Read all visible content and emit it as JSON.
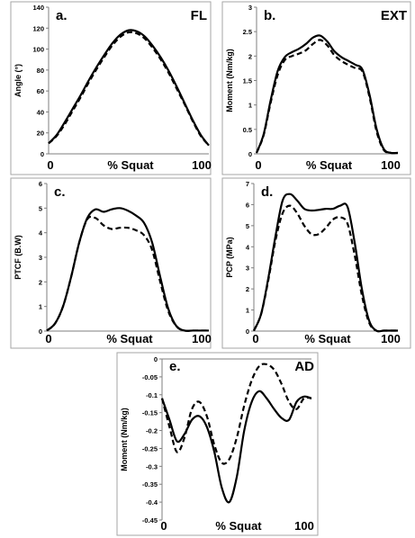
{
  "chart_data": [
    {
      "type": "line",
      "panel_label": "a.",
      "corner_label": "FL",
      "xlabel": "% Squat",
      "ylabel": "Angle (°)",
      "x_ticks": [
        "0",
        "100"
      ],
      "ylim": [
        0,
        140
      ],
      "y_ticks": [
        0,
        20,
        40,
        60,
        80,
        100,
        120,
        140
      ],
      "y_tick_labels": [
        "0",
        "20",
        "40",
        "60",
        "80",
        "100",
        "120",
        "140"
      ],
      "x": [
        0,
        5,
        10,
        15,
        20,
        25,
        30,
        35,
        40,
        45,
        50,
        55,
        60,
        65,
        70,
        75,
        80,
        85,
        90,
        95,
        100
      ],
      "series": [
        {
          "style": "solid",
          "values": [
            10,
            18,
            30,
            43,
            56,
            70,
            83,
            95,
            106,
            114,
            118,
            117,
            112,
            103,
            92,
            79,
            64,
            48,
            32,
            18,
            8
          ]
        },
        {
          "style": "dashed",
          "values": [
            10,
            17,
            28,
            41,
            54,
            68,
            81,
            93,
            104,
            112,
            116,
            115,
            110,
            101,
            90,
            77,
            62,
            47,
            31,
            17,
            8
          ]
        }
      ]
    },
    {
      "type": "line",
      "panel_label": "b.",
      "corner_label": "EXT",
      "xlabel": "% Squat",
      "ylabel": "Moment (Nm/kg)",
      "x_ticks": [
        "0",
        "100"
      ],
      "ylim": [
        0,
        3
      ],
      "y_ticks": [
        0,
        0.5,
        1,
        1.5,
        2,
        2.5,
        3
      ],
      "y_tick_labels": [
        "0",
        "0.5",
        "1",
        "1.5",
        "2",
        "2.5",
        "3"
      ],
      "x": [
        0,
        5,
        10,
        15,
        20,
        25,
        30,
        35,
        40,
        45,
        50,
        55,
        60,
        65,
        70,
        75,
        80,
        85,
        90,
        95,
        100
      ],
      "series": [
        {
          "style": "solid",
          "values": [
            0.02,
            0.4,
            1.1,
            1.7,
            1.98,
            2.08,
            2.15,
            2.25,
            2.38,
            2.42,
            2.3,
            2.1,
            1.98,
            1.9,
            1.82,
            1.72,
            1.2,
            0.5,
            0.1,
            0.02,
            0.02
          ]
        },
        {
          "style": "dashed",
          "values": [
            0.02,
            0.38,
            1.05,
            1.62,
            1.92,
            2.0,
            2.05,
            2.12,
            2.25,
            2.33,
            2.22,
            2.02,
            1.9,
            1.82,
            1.75,
            1.68,
            1.15,
            0.45,
            0.08,
            0.02,
            0.02
          ]
        }
      ]
    },
    {
      "type": "line",
      "panel_label": "c.",
      "corner_label": "",
      "xlabel": "% Squat",
      "ylabel": "PTCF (B.W)",
      "x_ticks": [
        "0",
        "100"
      ],
      "ylim": [
        0,
        6
      ],
      "y_ticks": [
        0,
        1,
        2,
        3,
        4,
        5,
        6
      ],
      "y_tick_labels": [
        "0",
        "1",
        "2",
        "3",
        "4",
        "5",
        "6"
      ],
      "x": [
        0,
        5,
        10,
        15,
        20,
        25,
        30,
        35,
        40,
        45,
        50,
        55,
        60,
        65,
        70,
        75,
        80,
        85,
        90,
        95,
        100
      ],
      "series": [
        {
          "style": "solid",
          "values": [
            0.02,
            0.3,
            1.0,
            2.2,
            3.6,
            4.6,
            4.95,
            4.85,
            4.95,
            5.0,
            4.9,
            4.7,
            4.4,
            3.6,
            2.2,
            0.9,
            0.2,
            0.02,
            0.02,
            0.02,
            0.02
          ]
        },
        {
          "style": "dashed",
          "values": [
            0.02,
            0.3,
            1.0,
            2.2,
            3.6,
            4.55,
            4.6,
            4.3,
            4.15,
            4.2,
            4.2,
            4.1,
            3.9,
            3.3,
            2.0,
            0.8,
            0.2,
            0.02,
            0.02,
            0.02,
            0.02
          ]
        }
      ]
    },
    {
      "type": "line",
      "panel_label": "d.",
      "corner_label": "",
      "xlabel": "% Squat",
      "ylabel": "PCP (MPa)",
      "x_ticks": [
        "0",
        "100"
      ],
      "ylim": [
        0,
        7
      ],
      "y_ticks": [
        0,
        1,
        2,
        3,
        4,
        5,
        6,
        7
      ],
      "y_tick_labels": [
        "0",
        "1",
        "2",
        "3",
        "4",
        "5",
        "6",
        "7"
      ],
      "x": [
        0,
        5,
        10,
        15,
        20,
        25,
        30,
        35,
        40,
        45,
        50,
        55,
        60,
        65,
        70,
        75,
        80,
        85,
        90,
        95,
        100
      ],
      "series": [
        {
          "style": "solid",
          "values": [
            0.02,
            0.8,
            2.5,
            4.5,
            6.2,
            6.5,
            6.2,
            5.8,
            5.72,
            5.75,
            5.8,
            5.8,
            5.95,
            5.9,
            4.2,
            2.0,
            0.5,
            0.02,
            0.02,
            0.02,
            0.02
          ]
        },
        {
          "style": "dashed",
          "values": [
            0.02,
            0.8,
            2.4,
            4.3,
            5.6,
            5.95,
            5.6,
            5.0,
            4.6,
            4.6,
            4.9,
            5.3,
            5.4,
            5.1,
            3.6,
            1.7,
            0.4,
            0.02,
            0.02,
            0.02,
            0.02
          ]
        }
      ]
    },
    {
      "type": "line",
      "panel_label": "e.",
      "corner_label": "AD",
      "xlabel": "% Squat",
      "ylabel": "Moment (Nm/kg)",
      "x_ticks": [
        "0",
        "100"
      ],
      "ylim": [
        -0.45,
        0
      ],
      "y_ticks": [
        -0.45,
        -0.4,
        -0.35,
        -0.3,
        -0.25,
        -0.2,
        -0.15,
        -0.1,
        -0.05,
        0
      ],
      "y_tick_labels": [
        "-0.45",
        "-0.4",
        "-0.35",
        "-0.3",
        "-0.25",
        "-0.2",
        "-0.15",
        "-0.1",
        "-0.05",
        "0"
      ],
      "x": [
        0,
        5,
        10,
        15,
        20,
        25,
        30,
        35,
        40,
        45,
        50,
        55,
        60,
        65,
        70,
        75,
        80,
        85,
        90,
        95,
        100
      ],
      "series": [
        {
          "style": "solid",
          "values": [
            -0.11,
            -0.17,
            -0.23,
            -0.21,
            -0.17,
            -0.16,
            -0.19,
            -0.26,
            -0.36,
            -0.4,
            -0.33,
            -0.2,
            -0.12,
            -0.09,
            -0.11,
            -0.14,
            -0.165,
            -0.17,
            -0.12,
            -0.105,
            -0.11
          ]
        },
        {
          "style": "dashed",
          "values": [
            -0.11,
            -0.19,
            -0.26,
            -0.22,
            -0.14,
            -0.12,
            -0.16,
            -0.24,
            -0.29,
            -0.28,
            -0.22,
            -0.13,
            -0.06,
            -0.02,
            -0.015,
            -0.03,
            -0.07,
            -0.12,
            -0.14,
            -0.11,
            -0.11
          ]
        }
      ]
    }
  ]
}
